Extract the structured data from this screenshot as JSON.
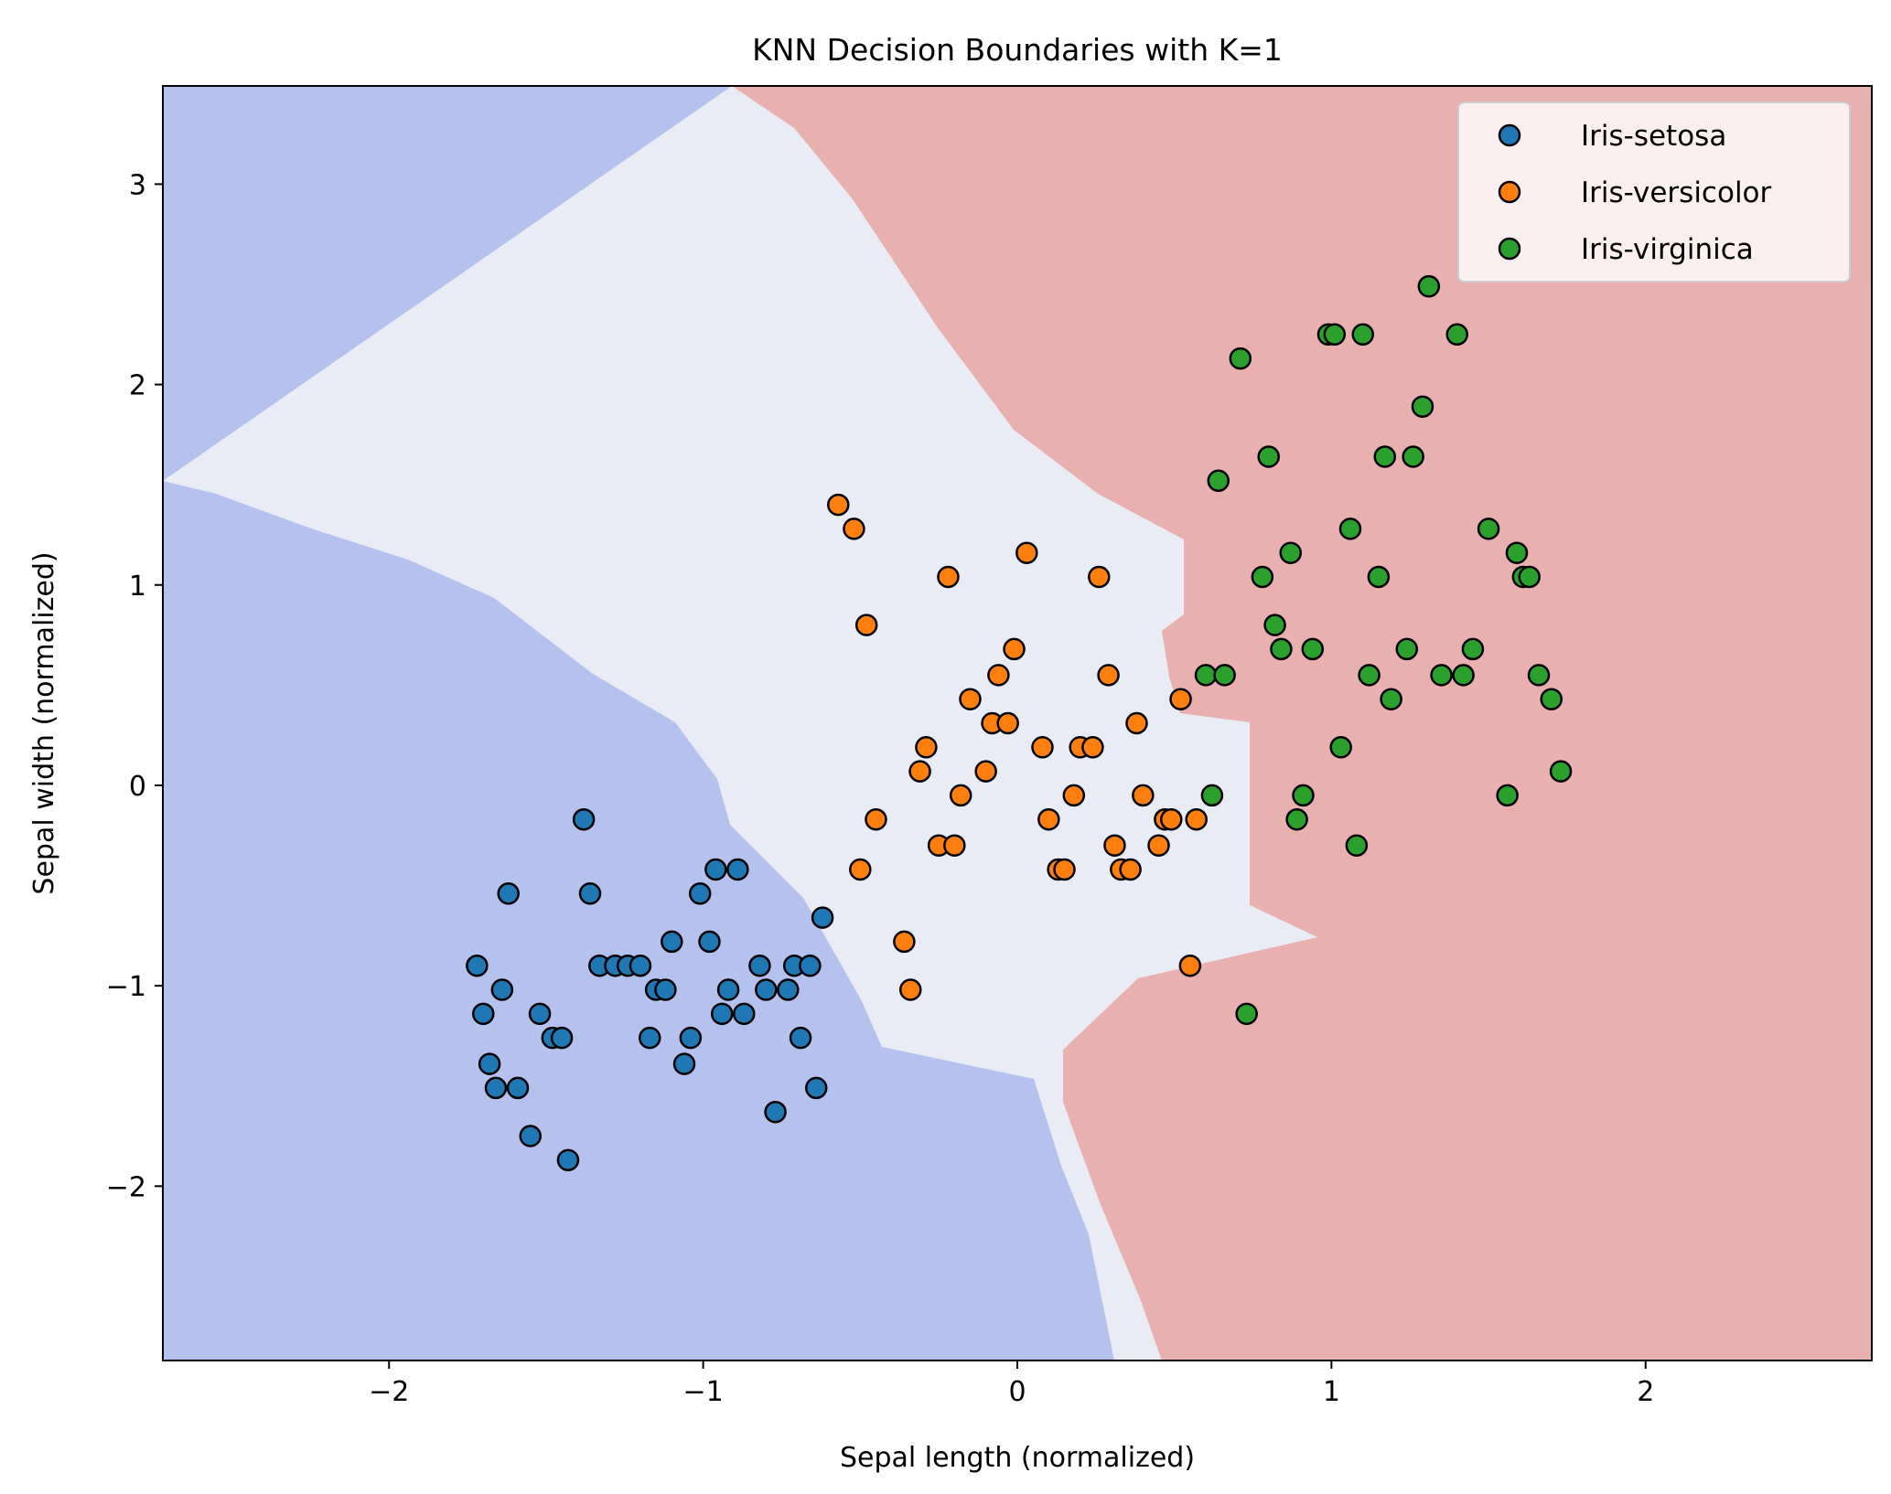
{
  "chart_data": {
    "type": "scatter",
    "title": "KNN Decision Boundaries with K=1",
    "xlabel": "Sepal length (normalized)",
    "ylabel": "Sepal width (normalized)",
    "xlim": [
      -2.72,
      2.72
    ],
    "ylim": [
      -2.87,
      3.49
    ],
    "xticks": [
      -2,
      -1,
      0,
      1,
      2
    ],
    "yticks": [
      -2,
      -1,
      0,
      1,
      2,
      3
    ],
    "xtick_labels": [
      "−2",
      "−1",
      "0",
      "1",
      "2"
    ],
    "ytick_labels": [
      "−2",
      "−1",
      "0",
      "1",
      "2",
      "3"
    ],
    "grid": false,
    "legend_position": "top-right",
    "region_colors": {
      "Iris-setosa": "#b6c2ee",
      "Iris-versicolor": "#e9ecf5",
      "Iris-virginica": "#e9b0b0"
    },
    "series": [
      {
        "name": "Iris-setosa",
        "color": "#1f77b4",
        "points": [
          [
            -1.72,
            -0.9
          ],
          [
            -1.7,
            -1.14
          ],
          [
            -1.68,
            -1.39
          ],
          [
            -1.66,
            -1.51
          ],
          [
            -1.64,
            -1.02
          ],
          [
            -1.62,
            -0.54
          ],
          [
            -1.59,
            -1.51
          ],
          [
            -1.55,
            -1.75
          ],
          [
            -1.52,
            -1.14
          ],
          [
            -1.48,
            -1.26
          ],
          [
            -1.45,
            -1.26
          ],
          [
            -1.43,
            -1.87
          ],
          [
            -1.38,
            -0.17
          ],
          [
            -1.36,
            -0.54
          ],
          [
            -1.33,
            -0.9
          ],
          [
            -1.28,
            -0.9
          ],
          [
            -1.24,
            -0.9
          ],
          [
            -1.2,
            -0.9
          ],
          [
            -1.17,
            -1.26
          ],
          [
            -1.15,
            -1.02
          ],
          [
            -1.12,
            -1.02
          ],
          [
            -1.1,
            -0.78
          ],
          [
            -1.06,
            -1.39
          ],
          [
            -1.04,
            -1.26
          ],
          [
            -1.01,
            -0.54
          ],
          [
            -0.98,
            -0.78
          ],
          [
            -0.96,
            -0.42
          ],
          [
            -0.94,
            -1.14
          ],
          [
            -0.92,
            -1.02
          ],
          [
            -0.89,
            -0.42
          ],
          [
            -0.87,
            -1.14
          ],
          [
            -0.82,
            -0.9
          ],
          [
            -0.8,
            -1.02
          ],
          [
            -0.77,
            -1.63
          ],
          [
            -0.73,
            -1.02
          ],
          [
            -0.71,
            -0.9
          ],
          [
            -0.69,
            -1.26
          ],
          [
            -0.66,
            -0.9
          ],
          [
            -0.64,
            -1.51
          ],
          [
            -0.62,
            -0.66
          ]
        ]
      },
      {
        "name": "Iris-versicolor",
        "color": "#ff7f0e",
        "points": [
          [
            -0.57,
            1.4
          ],
          [
            -0.52,
            1.28
          ],
          [
            -0.5,
            -0.42
          ],
          [
            -0.48,
            0.8
          ],
          [
            -0.45,
            -0.17
          ],
          [
            -0.36,
            -0.78
          ],
          [
            -0.34,
            -1.02
          ],
          [
            -0.31,
            0.07
          ],
          [
            -0.29,
            0.19
          ],
          [
            -0.25,
            -0.3
          ],
          [
            -0.22,
            1.04
          ],
          [
            -0.2,
            -0.3
          ],
          [
            -0.18,
            -0.05
          ],
          [
            -0.15,
            0.43
          ],
          [
            -0.1,
            0.07
          ],
          [
            -0.08,
            0.31
          ],
          [
            -0.06,
            0.55
          ],
          [
            -0.03,
            0.31
          ],
          [
            -0.01,
            0.68
          ],
          [
            0.03,
            1.16
          ],
          [
            0.08,
            0.19
          ],
          [
            0.1,
            -0.17
          ],
          [
            0.13,
            -0.42
          ],
          [
            0.15,
            -0.42
          ],
          [
            0.18,
            -0.05
          ],
          [
            0.2,
            0.19
          ],
          [
            0.24,
            0.19
          ],
          [
            0.26,
            1.04
          ],
          [
            0.29,
            0.55
          ],
          [
            0.31,
            -0.3
          ],
          [
            0.33,
            -0.42
          ],
          [
            0.36,
            -0.42
          ],
          [
            0.38,
            0.31
          ],
          [
            0.4,
            -0.05
          ],
          [
            0.45,
            -0.3
          ],
          [
            0.47,
            -0.17
          ],
          [
            0.49,
            -0.17
          ],
          [
            0.52,
            0.43
          ],
          [
            0.55,
            -0.9
          ],
          [
            0.57,
            -0.17
          ]
        ]
      },
      {
        "name": "Iris-virginica",
        "color": "#2ca02c",
        "points": [
          [
            0.6,
            0.55
          ],
          [
            0.62,
            -0.05
          ],
          [
            0.64,
            1.52
          ],
          [
            0.66,
            0.55
          ],
          [
            0.71,
            2.13
          ],
          [
            0.73,
            -1.14
          ],
          [
            0.78,
            1.04
          ],
          [
            0.8,
            1.64
          ],
          [
            0.82,
            0.8
          ],
          [
            0.84,
            0.68
          ],
          [
            0.87,
            1.16
          ],
          [
            0.89,
            -0.17
          ],
          [
            0.91,
            -0.05
          ],
          [
            0.94,
            0.68
          ],
          [
            0.99,
            2.25
          ],
          [
            1.01,
            2.25
          ],
          [
            1.03,
            0.19
          ],
          [
            1.06,
            1.28
          ],
          [
            1.08,
            -0.3
          ],
          [
            1.1,
            2.25
          ],
          [
            1.12,
            0.55
          ],
          [
            1.15,
            1.04
          ],
          [
            1.17,
            1.64
          ],
          [
            1.19,
            0.43
          ],
          [
            1.24,
            0.68
          ],
          [
            1.26,
            1.64
          ],
          [
            1.29,
            1.89
          ],
          [
            1.31,
            2.49
          ],
          [
            1.35,
            0.55
          ],
          [
            1.4,
            2.25
          ],
          [
            1.42,
            0.55
          ],
          [
            1.45,
            0.68
          ],
          [
            1.5,
            1.28
          ],
          [
            1.56,
            -0.05
          ],
          [
            1.59,
            1.16
          ],
          [
            1.61,
            1.04
          ],
          [
            1.63,
            1.04
          ],
          [
            1.66,
            0.55
          ],
          [
            1.7,
            0.43
          ],
          [
            1.73,
            0.07
          ]
        ]
      }
    ]
  }
}
